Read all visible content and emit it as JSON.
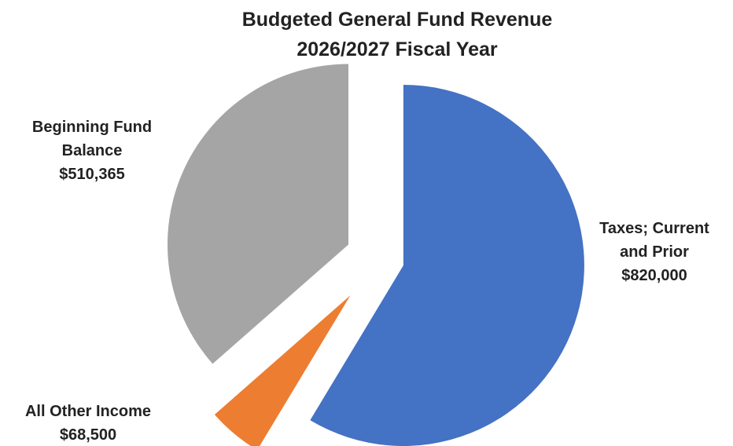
{
  "chart_data": {
    "type": "pie",
    "title": [
      "Budgeted  General Fund  Revenue",
      "2026/2027 Fiscal Year"
    ],
    "exploded": true,
    "slices": [
      {
        "name": "Taxes; Current and Prior",
        "label_lines": [
          "Taxes; Current",
          "and Prior",
          "$820,000"
        ],
        "value": 820000,
        "color": "#4472C4"
      },
      {
        "name": "All Other Income",
        "label_lines": [
          "All Other Income",
          "$68,500"
        ],
        "value": 68500,
        "color": "#ED7D31"
      },
      {
        "name": "Beginning Fund Balance",
        "label_lines": [
          "Beginning Fund",
          "Balance",
          "$510,365"
        ],
        "value": 510365,
        "color": "#A5A5A5"
      }
    ]
  }
}
